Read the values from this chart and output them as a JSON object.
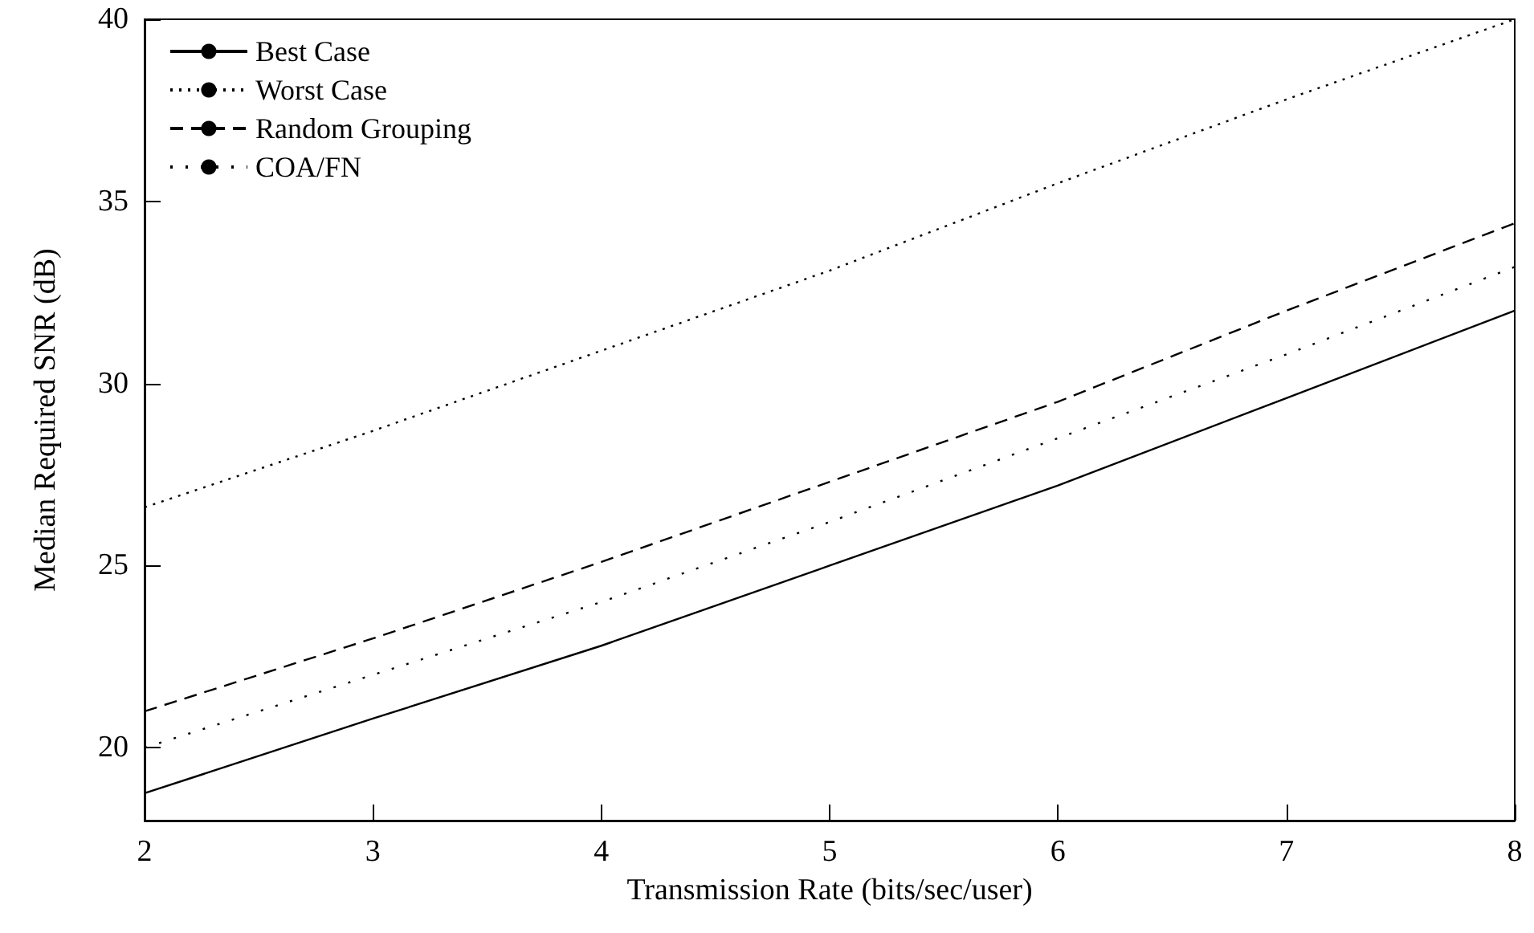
{
  "chart_data": {
    "type": "line",
    "xlabel": "Transmission Rate (bits/sec/user)",
    "ylabel": "Median Required SNR (dB)",
    "x": [
      2,
      3,
      4,
      5,
      6,
      7,
      8
    ],
    "series": [
      {
        "name": "Best Case",
        "color": "#000000",
        "line_style": "solid",
        "values": [
          18.75,
          20.8,
          22.8,
          25.0,
          27.2,
          29.6,
          32.0
        ]
      },
      {
        "name": "Worst Case",
        "color": "#000000",
        "line_style": "dotted",
        "values": [
          26.6,
          28.7,
          30.9,
          33.1,
          35.5,
          37.8,
          40.0
        ]
      },
      {
        "name": "Random Grouping",
        "color": "#000000",
        "line_style": "dashed",
        "values": [
          21.0,
          23.0,
          25.1,
          27.3,
          29.5,
          32.0,
          34.4
        ]
      },
      {
        "name": "COA/FN",
        "color": "#000000",
        "line_style": "dotted",
        "values": [
          20.0,
          22.0,
          24.0,
          26.2,
          28.5,
          30.8,
          33.2
        ]
      }
    ],
    "xlim": [
      2,
      8
    ],
    "xticks": [
      2,
      3,
      4,
      5,
      6,
      7,
      8
    ],
    "ylim": [
      18,
      40
    ],
    "yticks": [
      20,
      25,
      30,
      35,
      40
    ],
    "grid": false,
    "legend": "top left",
    "marker": "none"
  }
}
